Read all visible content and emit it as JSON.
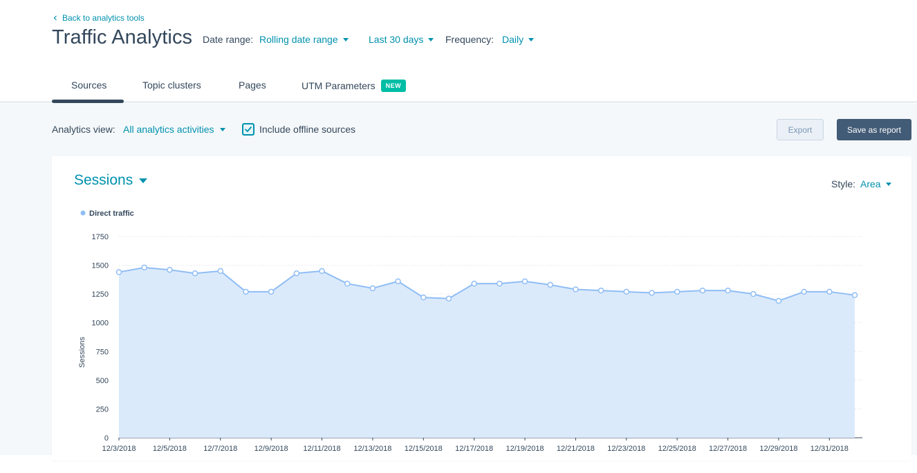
{
  "header": {
    "back_link": "Back to analytics tools",
    "title": "Traffic Analytics",
    "date_range_label": "Date range:",
    "date_range_value": "Rolling date range",
    "period_value": "Last 30 days",
    "frequency_label": "Frequency:",
    "frequency_value": "Daily"
  },
  "tabs": [
    {
      "label": "Sources",
      "active": true
    },
    {
      "label": "Topic clusters",
      "active": false
    },
    {
      "label": "Pages",
      "active": false
    },
    {
      "label": "UTM Parameters",
      "active": false,
      "badge": "NEW"
    }
  ],
  "toolbar": {
    "view_label": "Analytics view:",
    "view_value": "All analytics activities",
    "include_offline_label": "Include offline sources",
    "include_offline_checked": true,
    "export_label": "Export",
    "save_label": "Save as report"
  },
  "card": {
    "metric": "Sessions",
    "style_label": "Style:",
    "style_value": "Area"
  },
  "colors": {
    "accent": "#0091ae",
    "text": "#33475b",
    "series": "#8fbdf5",
    "area": "#dbeafb",
    "primary_button": "#425b76",
    "badge": "#00bda5"
  },
  "icons": {
    "back": "chevron-left-icon",
    "dropdown": "caret-down-icon",
    "checkbox": "checkmark-icon"
  },
  "chart_data": {
    "type": "area",
    "title": "",
    "xlabel": "",
    "ylabel": "Sessions",
    "ylim": [
      0,
      1750
    ],
    "yticks": [
      0,
      250,
      500,
      750,
      1000,
      1250,
      1500,
      1750
    ],
    "grid": true,
    "legend": "top-left",
    "x": [
      "12/3/2018",
      "12/4/2018",
      "12/5/2018",
      "12/6/2018",
      "12/7/2018",
      "12/8/2018",
      "12/9/2018",
      "12/10/2018",
      "12/11/2018",
      "12/12/2018",
      "12/13/2018",
      "12/14/2018",
      "12/15/2018",
      "12/16/2018",
      "12/17/2018",
      "12/18/2018",
      "12/19/2018",
      "12/20/2018",
      "12/21/2018",
      "12/22/2018",
      "12/23/2018",
      "12/24/2018",
      "12/25/2018",
      "12/26/2018",
      "12/27/2018",
      "12/28/2018",
      "12/29/2018",
      "12/30/2018",
      "12/31/2018",
      "1/1/2019"
    ],
    "xtick_labels": [
      "12/3/2018",
      "12/5/2018",
      "12/7/2018",
      "12/9/2018",
      "12/11/2018",
      "12/13/2018",
      "12/15/2018",
      "12/17/2018",
      "12/19/2018",
      "12/21/2018",
      "12/23/2018",
      "12/25/2018",
      "12/27/2018",
      "12/29/2018",
      "12/31/2018"
    ],
    "series": [
      {
        "name": "Direct traffic",
        "values": [
          1440,
          1480,
          1460,
          1430,
          1450,
          1270,
          1270,
          1430,
          1450,
          1340,
          1300,
          1360,
          1220,
          1210,
          1340,
          1340,
          1360,
          1330,
          1290,
          1280,
          1270,
          1260,
          1270,
          1280,
          1280,
          1250,
          1190,
          1270,
          1270,
          1240
        ]
      }
    ]
  }
}
